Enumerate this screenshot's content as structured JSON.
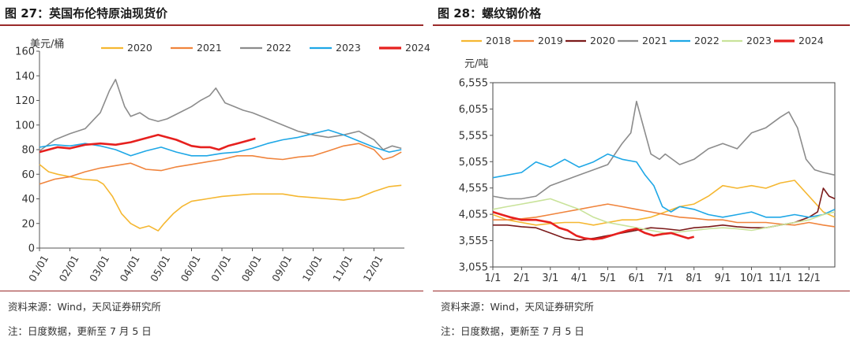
{
  "left": {
    "title": "图 27：英国布伦特原油现货价",
    "source": "资料来源：Wind，天风证券研究所",
    "note": "注：日度数据，更新至 7 月 5 日"
  },
  "right": {
    "title": "图 28：螺纹钢价格",
    "source": "资料来源：Wind，天风证券研究所",
    "note": "注：日度数据，更新至 7 月 5 日"
  },
  "chart_data": [
    {
      "type": "line",
      "unit_label": "美元/桶",
      "x_ticks": [
        "01/01",
        "02/01",
        "03/01",
        "04/01",
        "05/01",
        "06/01",
        "07/01",
        "08/01",
        "09/01",
        "10/01",
        "11/01",
        "12/01"
      ],
      "x_range": [
        0,
        12
      ],
      "ylim": [
        0,
        160
      ],
      "y_ticks": [
        0,
        20,
        40,
        60,
        80,
        100,
        120,
        140,
        160
      ],
      "legend_position": "top",
      "series": [
        {
          "name": "2020",
          "color": "#f5b731",
          "x": [
            0,
            0.3,
            0.6,
            1,
            1.4,
            1.9,
            2.1,
            2.4,
            2.7,
            3,
            3.3,
            3.6,
            3.9,
            4.1,
            4.4,
            4.7,
            5,
            5.5,
            6,
            6.5,
            7,
            7.5,
            8,
            8.5,
            9,
            9.5,
            10,
            10.5,
            11,
            11.5,
            11.9
          ],
          "values": [
            68,
            62,
            60,
            58,
            56,
            55,
            52,
            42,
            28,
            20,
            16,
            18,
            14,
            20,
            28,
            34,
            38,
            40,
            42,
            43,
            44,
            44,
            44,
            42,
            41,
            40,
            39,
            41,
            46,
            50,
            51
          ]
        },
        {
          "name": "2021",
          "color": "#f0843c",
          "x": [
            0,
            0.5,
            1,
            1.5,
            2,
            2.5,
            3,
            3.5,
            4,
            4.5,
            5,
            5.5,
            6,
            6.5,
            7,
            7.5,
            8,
            8.5,
            9,
            9.5,
            10,
            10.5,
            11,
            11.3,
            11.6,
            11.9
          ],
          "values": [
            52,
            56,
            58,
            62,
            65,
            67,
            69,
            64,
            63,
            66,
            68,
            70,
            72,
            75,
            75,
            73,
            72,
            74,
            75,
            79,
            83,
            85,
            80,
            72,
            74,
            78
          ]
        },
        {
          "name": "2022",
          "color": "#8c8c8c",
          "x": [
            0,
            0.5,
            1,
            1.5,
            2,
            2.3,
            2.5,
            2.8,
            3,
            3.3,
            3.6,
            3.9,
            4.2,
            4.6,
            5,
            5.3,
            5.6,
            5.8,
            6.1,
            6.4,
            6.7,
            7,
            7.5,
            8,
            8.5,
            9,
            9.5,
            10,
            10.5,
            11,
            11.3,
            11.6,
            11.9
          ],
          "values": [
            79,
            88,
            93,
            97,
            110,
            128,
            137,
            115,
            107,
            110,
            105,
            103,
            105,
            110,
            115,
            120,
            124,
            130,
            118,
            115,
            112,
            110,
            105,
            100,
            95,
            92,
            90,
            92,
            95,
            88,
            80,
            83,
            81
          ]
        },
        {
          "name": "2023",
          "color": "#1ea7e6",
          "x": [
            0,
            0.5,
            1,
            1.5,
            2,
            2.5,
            3,
            3.5,
            4,
            4.5,
            5,
            5.5,
            6,
            6.5,
            7,
            7.5,
            8,
            8.5,
            9,
            9.5,
            10,
            10.5,
            11,
            11.5,
            11.9
          ],
          "values": [
            82,
            84,
            83,
            85,
            83,
            80,
            75,
            79,
            82,
            78,
            75,
            75,
            77,
            78,
            81,
            85,
            88,
            90,
            93,
            96,
            92,
            87,
            82,
            78,
            80
          ]
        },
        {
          "name": "2024",
          "color": "#e6201e",
          "x": [
            0,
            0.3,
            0.6,
            1,
            1.5,
            2,
            2.5,
            3,
            3.3,
            3.6,
            3.9,
            4.2,
            4.5,
            4.8,
            5,
            5.3,
            5.6,
            5.9,
            6.2,
            6.5,
            6.8,
            7.1
          ],
          "values": [
            78,
            80,
            82,
            81,
            84,
            85,
            84,
            86,
            88,
            90,
            92,
            90,
            88,
            85,
            83,
            82,
            82,
            80,
            83,
            85,
            87,
            89
          ]
        }
      ]
    },
    {
      "type": "line",
      "unit_label": "元/吨",
      "x_ticks": [
        "1/1",
        "2/1",
        "3/1",
        "4/1",
        "5/1",
        "6/1",
        "7/1",
        "8/1",
        "9/1",
        "10/1",
        "11/1",
        "12/1"
      ],
      "x_range": [
        0,
        11.9
      ],
      "ylim": [
        3055,
        6555
      ],
      "y_ticks": [
        3055,
        3555,
        4055,
        4555,
        5055,
        5555,
        6055,
        6555
      ],
      "y_tick_labels": [
        "3,055",
        "3,555",
        "4,055",
        "4,555",
        "5,055",
        "5,555",
        "6,055",
        "6,555"
      ],
      "legend_position": "top",
      "series": [
        {
          "name": "2018",
          "color": "#f5b731",
          "x": [
            0,
            0.5,
            1,
            1.5,
            2,
            2.5,
            3,
            3.5,
            4,
            4.5,
            5,
            5.5,
            6,
            6.5,
            7,
            7.5,
            8,
            8.5,
            9,
            9.5,
            10,
            10.5,
            11,
            11.5,
            11.9
          ],
          "values": [
            4050,
            3950,
            3900,
            3850,
            3880,
            3900,
            3900,
            3850,
            3900,
            3950,
            3950,
            4000,
            4100,
            4200,
            4250,
            4400,
            4600,
            4550,
            4600,
            4550,
            4650,
            4700,
            4400,
            4100,
            4000
          ]
        },
        {
          "name": "2019",
          "color": "#f0843c",
          "x": [
            0,
            0.5,
            1,
            1.5,
            2,
            2.5,
            3,
            3.5,
            4,
            4.5,
            5,
            5.5,
            6,
            6.5,
            7,
            7.5,
            8,
            8.5,
            9,
            9.5,
            10,
            10.5,
            11,
            11.5,
            11.9
          ],
          "values": [
            3950,
            3950,
            3970,
            4000,
            4050,
            4100,
            4150,
            4200,
            4250,
            4200,
            4150,
            4100,
            4050,
            4000,
            3980,
            3950,
            3950,
            3900,
            3900,
            3900,
            3870,
            3850,
            3900,
            3850,
            3820
          ]
        },
        {
          "name": "2020",
          "color": "#7b1a1a",
          "x": [
            0,
            0.5,
            1,
            1.5,
            2,
            2.5,
            3,
            3.5,
            4,
            4.5,
            5,
            5.5,
            6,
            6.5,
            7,
            7.5,
            8,
            8.5,
            9,
            9.5,
            10,
            10.5,
            11,
            11.3,
            11.5,
            11.7,
            11.9
          ],
          "values": [
            3850,
            3850,
            3820,
            3800,
            3700,
            3600,
            3560,
            3600,
            3650,
            3700,
            3750,
            3800,
            3780,
            3750,
            3800,
            3820,
            3850,
            3820,
            3800,
            3800,
            3850,
            3900,
            4000,
            4100,
            4550,
            4400,
            4350
          ]
        },
        {
          "name": "2021",
          "color": "#8c8c8c",
          "x": [
            0,
            0.5,
            1,
            1.5,
            2,
            2.5,
            3,
            3.5,
            4,
            4.5,
            4.8,
            5,
            5.2,
            5.5,
            5.8,
            6,
            6.5,
            7,
            7.5,
            8,
            8.5,
            9,
            9.5,
            10,
            10.3,
            10.6,
            10.9,
            11.2,
            11.5,
            11.9
          ],
          "values": [
            4400,
            4350,
            4350,
            4400,
            4600,
            4700,
            4800,
            4900,
            5000,
            5400,
            5600,
            6200,
            5800,
            5200,
            5100,
            5200,
            5000,
            5100,
            5300,
            5400,
            5300,
            5600,
            5700,
            5900,
            6000,
            5700,
            5100,
            4900,
            4850,
            4800
          ]
        },
        {
          "name": "2022",
          "color": "#1ea7e6",
          "x": [
            0,
            0.5,
            1,
            1.5,
            2,
            2.5,
            3,
            3.5,
            4,
            4.5,
            5,
            5.3,
            5.6,
            5.9,
            6.2,
            6.5,
            7,
            7.5,
            8,
            8.5,
            9,
            9.5,
            10,
            10.5,
            11,
            11.5,
            11.9
          ],
          "values": [
            4750,
            4800,
            4850,
            5050,
            4950,
            5100,
            4950,
            5050,
            5200,
            5100,
            5050,
            4800,
            4600,
            4200,
            4100,
            4200,
            4150,
            4050,
            4000,
            4050,
            4100,
            4000,
            4000,
            4050,
            4000,
            4050,
            4150
          ]
        },
        {
          "name": "2023",
          "color": "#c9e39a",
          "x": [
            0,
            0.5,
            1,
            1.5,
            2,
            2.5,
            3,
            3.5,
            4,
            4.5,
            5,
            5.5,
            6,
            6.5,
            7,
            7.5,
            8,
            8.5,
            9,
            9.5,
            10,
            10.5,
            11,
            11.5,
            11.9
          ],
          "values": [
            4150,
            4200,
            4250,
            4300,
            4350,
            4250,
            4150,
            4000,
            3900,
            3850,
            3800,
            3750,
            3700,
            3720,
            3750,
            3780,
            3800,
            3780,
            3750,
            3800,
            3850,
            3900,
            3950,
            4050,
            4100
          ]
        },
        {
          "name": "2024",
          "color": "#e6201e",
          "x": [
            0,
            0.3,
            0.6,
            1,
            1.5,
            2,
            2.3,
            2.6,
            2.9,
            3.2,
            3.5,
            3.8,
            4.1,
            4.4,
            4.7,
            5,
            5.3,
            5.6,
            5.9,
            6.2,
            6.5,
            6.8,
            7
          ],
          "values": [
            4100,
            4050,
            4000,
            3950,
            3950,
            3900,
            3800,
            3750,
            3650,
            3600,
            3580,
            3600,
            3650,
            3700,
            3750,
            3780,
            3700,
            3650,
            3680,
            3700,
            3650,
            3600,
            3630
          ]
        }
      ]
    }
  ]
}
